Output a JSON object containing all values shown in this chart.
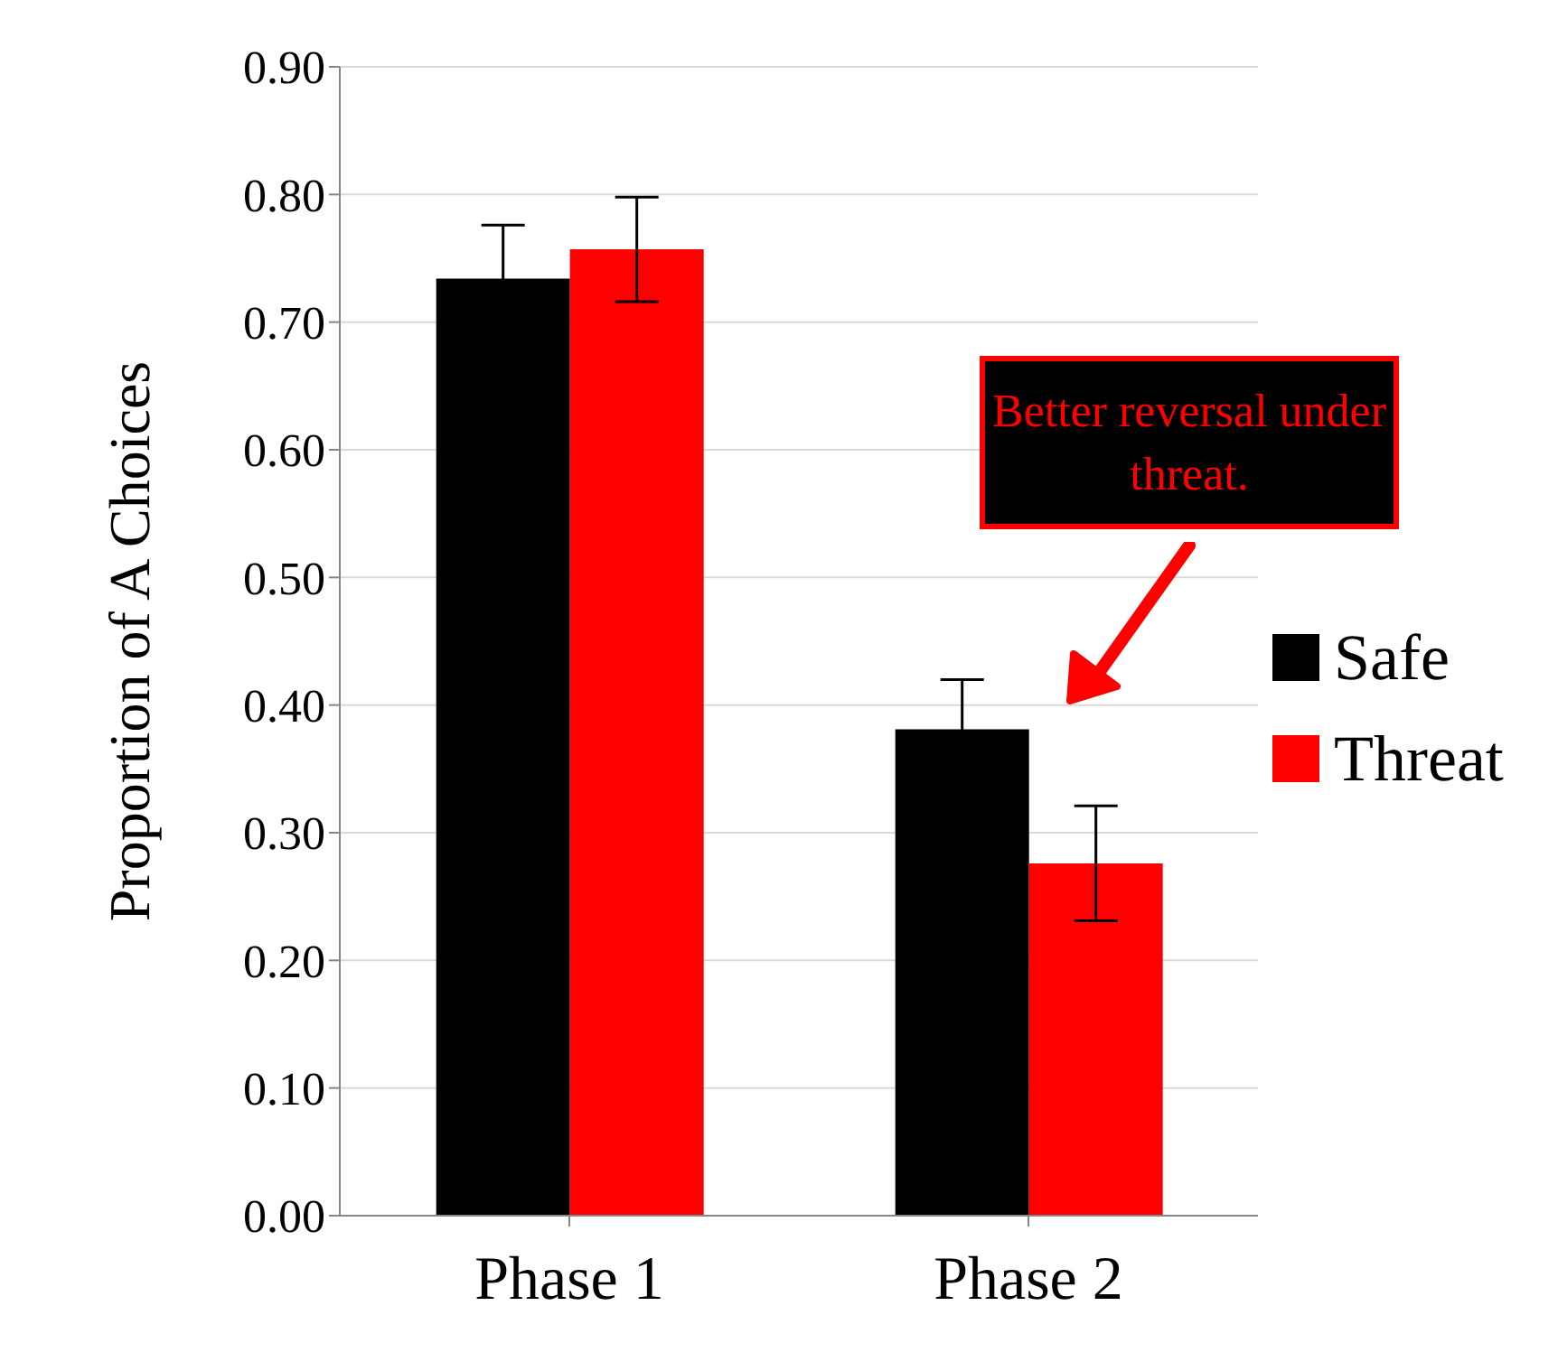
{
  "chart_data": {
    "type": "bar",
    "ylabel": "Proportion of A Choices",
    "categories": [
      "Phase 1",
      "Phase 2"
    ],
    "series": [
      {
        "name": "Safe",
        "color": "#000000",
        "values": [
          0.734,
          0.381
        ],
        "errors": [
          0.042,
          0.039
        ]
      },
      {
        "name": "Threat",
        "color": "#ff0000",
        "values": [
          0.757,
          0.276
        ],
        "errors": [
          0.041,
          0.045
        ]
      }
    ],
    "ylim": [
      0,
      0.9
    ],
    "yticks": [
      {
        "value": 0,
        "label": "0.00"
      },
      {
        "value": 0.1,
        "label": "0.10"
      },
      {
        "value": 0.2,
        "label": "0.20"
      },
      {
        "value": 0.3,
        "label": "0.30"
      },
      {
        "value": 0.4,
        "label": "0.40"
      },
      {
        "value": 0.5,
        "label": "0.50"
      },
      {
        "value": 0.6,
        "label": "0.60"
      },
      {
        "value": 0.7,
        "label": "0.70"
      },
      {
        "value": 0.8,
        "label": "0.80"
      },
      {
        "value": 0.9,
        "label": "0.90"
      }
    ],
    "grid": "y",
    "legend": "right",
    "annotations": [
      "Better reversal under threat."
    ]
  }
}
